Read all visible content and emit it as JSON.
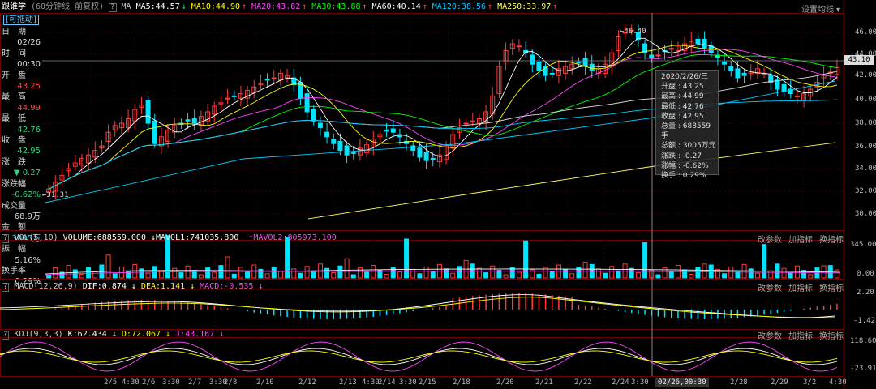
{
  "main": {
    "stock_name": "跟谁学",
    "period": "(60分钟线 前复权)",
    "ma_labels": [
      {
        "text": "MA5:44.57",
        "color": "#ffffff"
      },
      {
        "text": "MA10:44.90",
        "color": "#ffff00"
      },
      {
        "text": "MA20:43.82",
        "color": "#ff44ff"
      },
      {
        "text": "MA30:43.88",
        "color": "#00ff00"
      },
      {
        "text": "MA60:40.14",
        "color": "#ffffff"
      },
      {
        "text": "MA120:38.56",
        "color": "#00ccff"
      },
      {
        "text": "MA250:33.97",
        "color": "#ffff66"
      }
    ],
    "ma_tag": "MA",
    "settings_label": "设置均线",
    "y_ticks": [
      "46.00",
      "44.00",
      "42.00",
      "40.00",
      "38.00",
      "36.00",
      "34.00",
      "32.00",
      "30.00"
    ],
    "current_price": "43.10",
    "low_marker": "31.31",
    "high_marker": "46.40"
  },
  "info_panel": {
    "badge": "[可拖动]",
    "rows": [
      {
        "label": "日　期",
        "value": "2020",
        "color": "#ddd"
      },
      {
        "label": "",
        "value": "02/26",
        "color": "#ddd"
      },
      {
        "label": "时　间",
        "value": "",
        "color": "#ddd"
      },
      {
        "label": "",
        "value": "00:30",
        "color": "#ddd"
      },
      {
        "label": "开　盘",
        "value": "",
        "color": "#ddd"
      },
      {
        "label": "",
        "value": "43.25",
        "color": "#ff4a4a"
      },
      {
        "label": "最　高",
        "value": "",
        "color": "#ddd"
      },
      {
        "label": "",
        "value": "44.99",
        "color": "#ff4a4a"
      },
      {
        "label": "最　低",
        "value": "",
        "color": "#ddd"
      },
      {
        "label": "",
        "value": "42.76",
        "color": "#2fd67c"
      },
      {
        "label": "收　盘",
        "value": "",
        "color": "#ddd"
      },
      {
        "label": "",
        "value": "42.95",
        "color": "#2fd67c"
      },
      {
        "label": "涨　跌",
        "value": "",
        "color": "#ddd"
      },
      {
        "label": "",
        "value": "▼ 0.27",
        "color": "#2fd67c"
      },
      {
        "label": "涨跌幅",
        "value": "",
        "color": "#ddd"
      },
      {
        "label": "",
        "value": "-0.62%",
        "color": "#2fd67c"
      },
      {
        "label": "成交量",
        "value": "",
        "color": "#ddd"
      },
      {
        "label": "",
        "value": "68.9万",
        "color": "#ddd"
      },
      {
        "label": "金　额",
        "value": "",
        "color": "#ddd"
      },
      {
        "label": "",
        "value": "3005万",
        "color": "#3ae0ff"
      },
      {
        "label": "振　幅",
        "value": "",
        "color": "#ddd"
      },
      {
        "label": "",
        "value": "5.16%",
        "color": "#ddd"
      },
      {
        "label": "换手率",
        "value": "",
        "color": "#ddd"
      },
      {
        "label": "",
        "value": "0.29%",
        "color": "#ddd"
      }
    ]
  },
  "tooltip": {
    "date": "2020/2/26/三",
    "rows": [
      {
        "label": "开盘",
        "value": "43.25"
      },
      {
        "label": "最高",
        "value": "44.99"
      },
      {
        "label": "最低",
        "value": "42.76"
      },
      {
        "label": "收盘",
        "value": "42.95"
      },
      {
        "label": "总量",
        "value": "688559手"
      },
      {
        "label": "总额",
        "value": "3005万元"
      },
      {
        "label": "涨跌",
        "value": "-0.27"
      },
      {
        "label": "涨幅",
        "value": "-0.62%"
      },
      {
        "label": "换手",
        "value": "0.29%"
      }
    ]
  },
  "vol_panel": {
    "title": "VOL(5,10)",
    "volume": "VOLUME:688559.000",
    "mavol1": "MAVOL1:741035.800",
    "mavol2": "MAVOL2:805973.100",
    "y_ticks": [
      "345.00",
      "0.00"
    ]
  },
  "macd_panel": {
    "title": "MACD(12,26,9)",
    "dif": "DIF:0.874",
    "dea": "DEA:1.141",
    "macd": "MACD:-0.535",
    "y_ticks": [
      "2.20",
      "-1.42"
    ]
  },
  "kdj_panel": {
    "title": "KDJ(9,3,3)",
    "k": "K:62.434",
    "d": "D:72.067",
    "j": "J:43.167",
    "y_ticks": [
      "118.60",
      "-23.91"
    ]
  },
  "panel_tools": [
    "改参数",
    "加指标",
    "换指标"
  ],
  "x_axis": {
    "labels": [
      "2/5",
      "4:30",
      "2/6",
      "3:30",
      "2/7",
      "2/7",
      "3:30",
      "2/8",
      "2/10",
      "2/12",
      "2/13",
      "4:30",
      "2/14",
      "3:30",
      "2/15",
      "2/18",
      "2/20",
      "2/21",
      "2/22",
      "2/24",
      "3:30",
      "2/28",
      "2/29",
      "3/2",
      "4:30"
    ],
    "cursor_label": "02/26,00:30"
  },
  "colors": {
    "up": "#ff3b3b",
    "down": "#00e5ff",
    "bg": "#000000",
    "grid": "#3a0000"
  }
}
